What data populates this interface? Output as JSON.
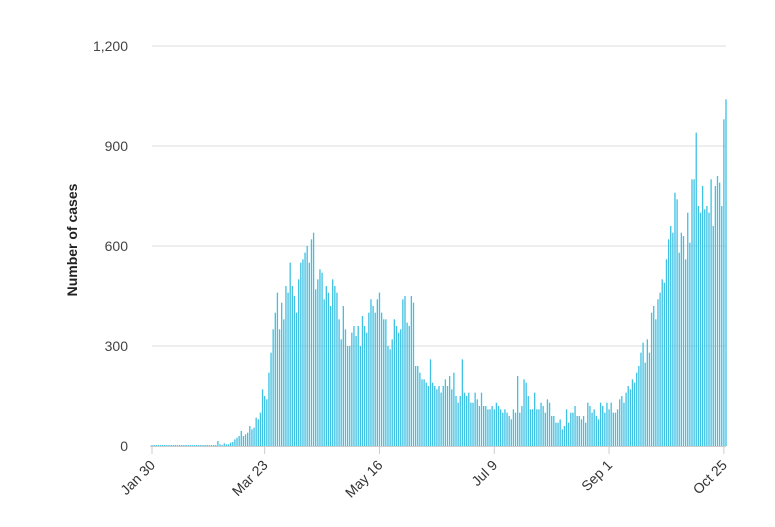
{
  "chart_data": {
    "type": "bar",
    "title": "",
    "xlabel": "",
    "ylabel": "Number of cases",
    "ylim": [
      0,
      1200
    ],
    "yticks": [
      0,
      300,
      600,
      900,
      1200
    ],
    "ytick_labels": [
      "0",
      "300",
      "600",
      "900",
      "1,200"
    ],
    "x_start": "Jan 30",
    "x_end": "Oct 25",
    "xticks": [
      {
        "day": 0,
        "label": "Jan 30"
      },
      {
        "day": 53,
        "label": "Mar 23"
      },
      {
        "day": 107,
        "label": "May 16"
      },
      {
        "day": 161,
        "label": "Jul 9"
      },
      {
        "day": 215,
        "label": "Sep 1"
      },
      {
        "day": 269,
        "label": "Oct 25"
      }
    ],
    "gridlines": true,
    "bar_color": "#3fc1e3",
    "grid_color": "#dddddd",
    "values": [
      3,
      3,
      3,
      3,
      3,
      3,
      3,
      3,
      3,
      3,
      3,
      3,
      3,
      3,
      3,
      3,
      3,
      3,
      3,
      3,
      3,
      3,
      3,
      3,
      3,
      3,
      3,
      3,
      3,
      3,
      3,
      15,
      5,
      3,
      8,
      5,
      5,
      10,
      12,
      20,
      25,
      30,
      45,
      30,
      35,
      40,
      60,
      50,
      55,
      85,
      80,
      100,
      170,
      150,
      140,
      220,
      280,
      350,
      400,
      460,
      350,
      430,
      380,
      480,
      460,
      550,
      480,
      450,
      400,
      500,
      550,
      560,
      580,
      600,
      550,
      620,
      640,
      470,
      500,
      530,
      520,
      440,
      480,
      460,
      420,
      500,
      480,
      460,
      380,
      320,
      420,
      350,
      300,
      300,
      340,
      360,
      330,
      360,
      300,
      390,
      360,
      340,
      400,
      440,
      420,
      400,
      440,
      460,
      400,
      380,
      380,
      300,
      290,
      320,
      380,
      360,
      340,
      350,
      440,
      450,
      370,
      360,
      450,
      430,
      240,
      240,
      220,
      200,
      200,
      190,
      180,
      260,
      190,
      180,
      170,
      180,
      160,
      180,
      200,
      180,
      210,
      170,
      220,
      150,
      130,
      150,
      260,
      160,
      150,
      160,
      130,
      130,
      160,
      140,
      120,
      160,
      120,
      120,
      110,
      110,
      120,
      110,
      130,
      120,
      110,
      100,
      110,
      100,
      90,
      80,
      110,
      100,
      210,
      100,
      120,
      200,
      190,
      150,
      110,
      110,
      160,
      110,
      110,
      130,
      120,
      100,
      140,
      130,
      90,
      90,
      70,
      70,
      80,
      50,
      60,
      110,
      70,
      100,
      100,
      120,
      90,
      90,
      80,
      90,
      70,
      130,
      120,
      100,
      110,
      90,
      80,
      130,
      120,
      100,
      130,
      110,
      130,
      100,
      100,
      110,
      140,
      150,
      130,
      160,
      180,
      170,
      200,
      190,
      220,
      240,
      280,
      310,
      250,
      320,
      280,
      400,
      420,
      380,
      440,
      460,
      500,
      490,
      560,
      620,
      660,
      640,
      760,
      740,
      580,
      640,
      630,
      560,
      700,
      610,
      800,
      800,
      940,
      720,
      700,
      780,
      710,
      720,
      700,
      800,
      660,
      780,
      810,
      790,
      720,
      980,
      1040
    ]
  }
}
